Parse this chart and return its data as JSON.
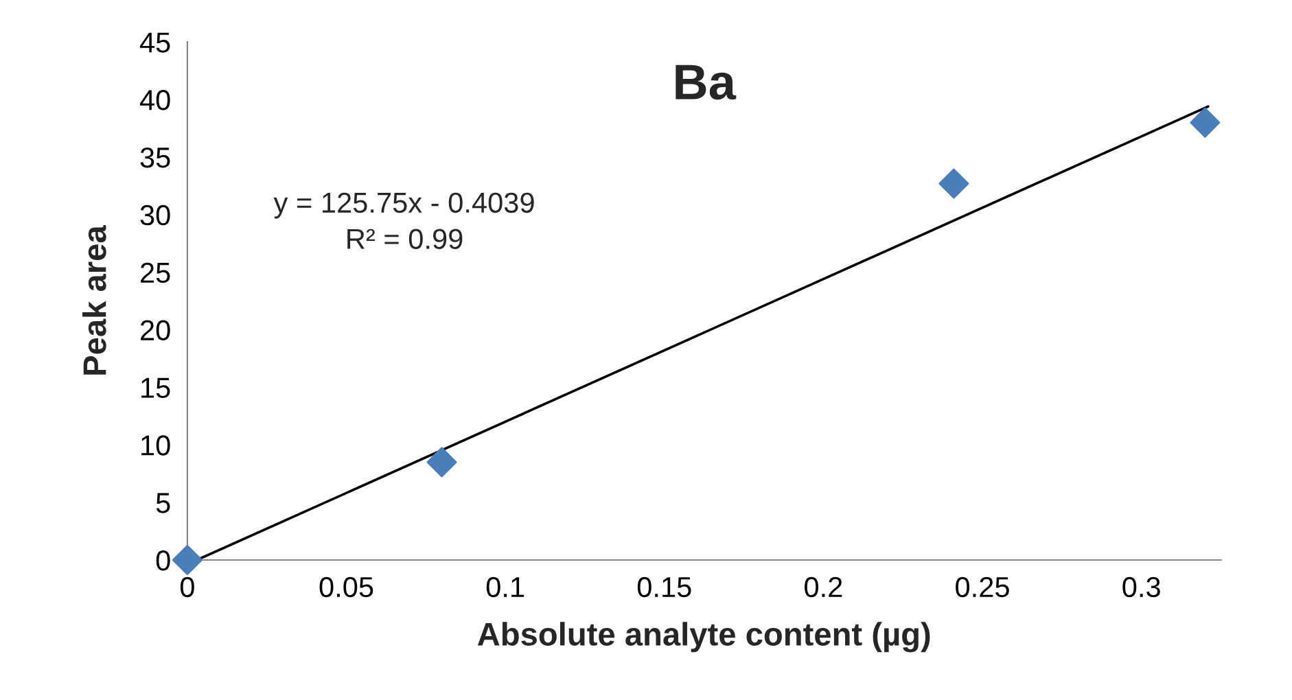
{
  "chart_data": {
    "type": "scatter",
    "title": "Ba",
    "xlabel": "Absolute analyte content (µg)",
    "ylabel": "Peak area",
    "series": [
      {
        "color": "#4a7ebb",
        "marker": "diamond",
        "x": [
          0,
          0.08,
          0.241,
          0.32
        ],
        "values": [
          0,
          8.5,
          32.7,
          38.0
        ]
      },
      {
        "type": "line",
        "color": "#000000",
        "marker": "none",
        "x": [
          0.003,
          0.321
        ],
        "values": [
          0,
          39.4
        ]
      }
    ],
    "annotations": [
      "y = 125.75x - 0.4039",
      "R² = 0.99"
    ],
    "xlim": [
      0,
      0.325
    ],
    "xticks": [
      {
        "value": 0,
        "label": "0"
      },
      0.05,
      0.1,
      0.15,
      0.2,
      0.25,
      0.3
    ],
    "ylim": [
      0,
      45
    ],
    "yticks": [
      0,
      5,
      10,
      15,
      20,
      25,
      30,
      35,
      40,
      45
    ],
    "grid": false,
    "legend": false
  }
}
